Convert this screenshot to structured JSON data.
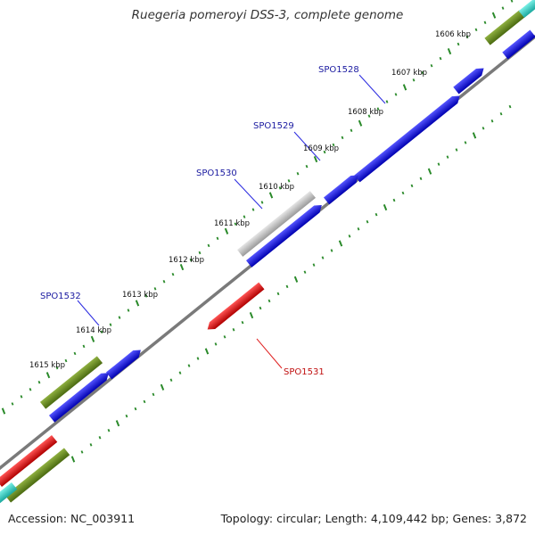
{
  "title": "Ruegeria pomeroyi DSS-3, complete genome",
  "footer": {
    "accession": "Accession: NC_003911",
    "summary": "Topology: circular; Length: 4,109,442 bp; Genes: 3,872"
  },
  "colors": {
    "forward_gene": "#1010e0",
    "reverse_gene": "#e01010",
    "pseudo_gene": "#b8b8b8",
    "olive_gene": "#6b8a1e",
    "cyan_gene": "#3fd3c7",
    "backbone": "#7a7a7a",
    "tick": "#2a8a2a",
    "label_forward": "#1a1aa0",
    "label_reverse": "#c01010"
  },
  "scale": {
    "unit": "kbp",
    "ticks": [
      "1606 kbp",
      "1607 kbp",
      "1608 kbp",
      "1609 kbp",
      "1610 kbp",
      "1611 kbp",
      "1612 kbp",
      "1613 kbp",
      "1614 kbp",
      "1615 kbp"
    ]
  },
  "genes": [
    {
      "label": "SPO1528",
      "strand": "forward",
      "color": "forward_gene"
    },
    {
      "label": "SPO1529",
      "strand": "forward",
      "color": "forward_gene"
    },
    {
      "label": "SPO1530",
      "strand": "forward",
      "color": "pseudo_gene"
    },
    {
      "label": "SPO1531",
      "strand": "reverse",
      "color": "reverse_gene"
    },
    {
      "label": "SPO1532",
      "strand": "forward",
      "color": "forward_gene"
    }
  ]
}
